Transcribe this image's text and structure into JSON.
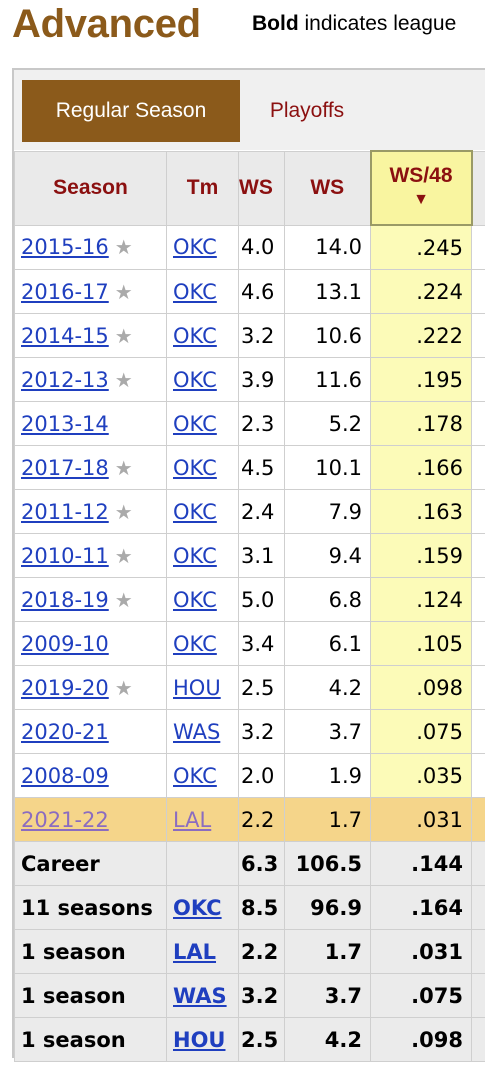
{
  "page": {
    "title": "Advanced",
    "legend_bold": "Bold",
    "legend_rest": " indicates league"
  },
  "tabs": [
    {
      "label": "Regular Season",
      "active": true
    },
    {
      "label": "Playoffs",
      "active": false
    }
  ],
  "columns": {
    "season": "Season",
    "team": "Tm",
    "ows": "WS",
    "ws": "WS",
    "ws48": "WS/48",
    "sort_arrow": "▼"
  },
  "rows": [
    {
      "season": "2015-16",
      "star": true,
      "team": "OKC",
      "ows": "4.0",
      "ws": "14.0",
      "ws48": ".245"
    },
    {
      "season": "2016-17",
      "star": true,
      "team": "OKC",
      "ows": "4.6",
      "ws": "13.1",
      "ws48": ".224"
    },
    {
      "season": "2014-15",
      "star": true,
      "team": "OKC",
      "ows": "3.2",
      "ws": "10.6",
      "ws48": ".222"
    },
    {
      "season": "2012-13",
      "star": true,
      "team": "OKC",
      "ows": "3.9",
      "ws": "11.6",
      "ws48": ".195"
    },
    {
      "season": "2013-14",
      "star": false,
      "team": "OKC",
      "ows": "2.3",
      "ws": "5.2",
      "ws48": ".178"
    },
    {
      "season": "2017-18",
      "star": true,
      "team": "OKC",
      "ows": "4.5",
      "ws": "10.1",
      "ws48": ".166"
    },
    {
      "season": "2011-12",
      "star": true,
      "team": "OKC",
      "ows": "2.4",
      "ws": "7.9",
      "ws48": ".163"
    },
    {
      "season": "2010-11",
      "star": true,
      "team": "OKC",
      "ows": "3.1",
      "ws": "9.4",
      "ws48": ".159"
    },
    {
      "season": "2018-19",
      "star": true,
      "team": "OKC",
      "ows": "5.0",
      "ws": "6.8",
      "ws48": ".124"
    },
    {
      "season": "2009-10",
      "star": false,
      "team": "OKC",
      "ows": "3.4",
      "ws": "6.1",
      "ws48": ".105"
    },
    {
      "season": "2019-20",
      "star": true,
      "team": "HOU",
      "ows": "2.5",
      "ws": "4.2",
      "ws48": ".098"
    },
    {
      "season": "2020-21",
      "star": false,
      "team": "WAS",
      "ows": "3.2",
      "ws": "3.7",
      "ws48": ".075"
    },
    {
      "season": "2008-09",
      "star": false,
      "team": "OKC",
      "ows": "2.0",
      "ws": "1.9",
      "ws48": ".035"
    },
    {
      "season": "2021-22",
      "star": false,
      "team": "LAL",
      "ows": "2.2",
      "ws": "1.7",
      "ws48": ".031",
      "highlight": true
    }
  ],
  "totals": [
    {
      "label": "Career",
      "team": "",
      "ows": "6.3",
      "ws": "106.5",
      "ws48": ".144"
    },
    {
      "label": "11 seasons",
      "team": "OKC",
      "ows": "8.5",
      "ws": "96.9",
      "ws48": ".164"
    },
    {
      "label": "1 season",
      "team": "LAL",
      "ows": "2.2",
      "ws": "1.7",
      "ws48": ".031"
    },
    {
      "label": "1 season",
      "team": "WAS",
      "ows": "3.2",
      "ws": "3.7",
      "ws48": ".075"
    },
    {
      "label": "1 season",
      "team": "HOU",
      "ows": "2.5",
      "ws": "4.2",
      "ws48": ".098"
    }
  ],
  "icons": {
    "star": "star-icon",
    "sort": "sort-descending-icon"
  },
  "colors": {
    "title": "#8b5a1b",
    "tab_active": "#8b5a1b",
    "header_text": "#8b1010",
    "sorted_col": "#fcfbb8",
    "highlight_row": "#f5d58a",
    "link": "#1f3fbf"
  }
}
